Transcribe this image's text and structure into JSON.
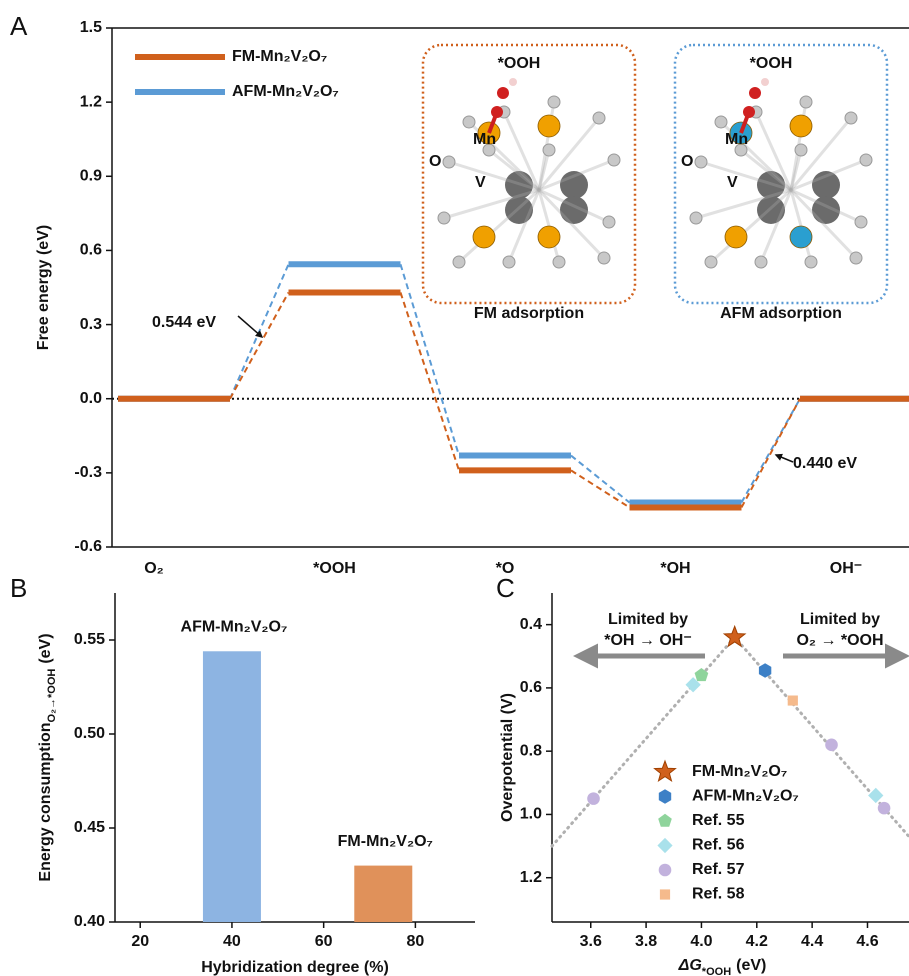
{
  "chart_data": [
    {
      "type": "energy_diagram",
      "panel": "A",
      "ylabel": "Free energy (eV)",
      "categories": [
        "O₂",
        "*OOH",
        "*O",
        "*OH",
        "OH⁻"
      ],
      "series": [
        {
          "name": "FM-Mn₂V₂O₇",
          "color": "#d0601c",
          "values": [
            0,
            0.43,
            -0.29,
            -0.44,
            0
          ]
        },
        {
          "name": "AFM-Mn₂V₂O₇",
          "color": "#5b9bd5",
          "values": [
            0,
            0.544,
            -0.23,
            -0.42,
            0
          ]
        }
      ],
      "ylim": [
        -0.6,
        1.5
      ],
      "yticks": [
        -0.6,
        -0.3,
        {
          "value": 0,
          "label": "0.0"
        },
        0.3,
        0.6,
        0.9,
        1.2,
        1.5
      ],
      "zero_line": true,
      "annotations": [
        "0.544 eV",
        "0.440 eV"
      ],
      "insets": [
        {
          "title": "*OOH",
          "atoms": [
            "Mn",
            "O",
            "V"
          ],
          "caption": "FM adsorption",
          "color": "#d0601c"
        },
        {
          "title": "*OOH",
          "atoms": [
            "Mn",
            "O",
            "V"
          ],
          "caption": "AFM adsorption",
          "color": "#5b9bd5"
        }
      ]
    },
    {
      "type": "bar",
      "panel": "B",
      "ylabel": {
        "main": "Energy consumption",
        "sub": "O₂→*OOH",
        "unit": "(eV)"
      },
      "xlabel": "Hybridization degree (%)",
      "x": [
        40,
        73
      ],
      "values": [
        0.544,
        0.43
      ],
      "labels": [
        "AFM-Mn₂V₂O₇",
        "FM-Mn₂V₂O₇"
      ],
      "colors": [
        "#8db4e2",
        "#e0915a"
      ],
      "xlim": [
        14.5,
        93
      ],
      "xticks": [
        20,
        40,
        60,
        80
      ],
      "ylim": [
        0.4,
        0.575
      ],
      "yticks": [
        {
          "value": 0.4,
          "label": "0.40"
        },
        0.45,
        {
          "value": 0.5,
          "label": "0.50"
        },
        0.55
      ]
    },
    {
      "type": "scatter",
      "panel": "C",
      "xlabel": {
        "main": "ΔG",
        "sub": "*OOH",
        "unit": "(eV)"
      },
      "ylabel": "Overpotential (V)",
      "xlim": [
        3.46,
        4.75
      ],
      "xticks": [
        3.6,
        3.8,
        {
          "value": 4,
          "label": "4.0"
        },
        4.2,
        4.4,
        4.6
      ],
      "ylim": [
        0.3,
        1.34
      ],
      "y_reversed": true,
      "yticks": [
        0.4,
        0.6,
        0.8,
        {
          "value": 1,
          "label": "1.0"
        },
        1.2
      ],
      "series": [
        {
          "name": "FM-Mn₂V₂O₇",
          "marker": "star",
          "color": "#d0601c",
          "x": [
            4.12
          ],
          "values": [
            0.44
          ]
        },
        {
          "name": "AFM-Mn₂V₂O₇",
          "marker": "hexagon",
          "color": "#3d80c6",
          "x": [
            4.23
          ],
          "values": [
            0.545
          ]
        },
        {
          "name": "Ref. 55",
          "marker": "pentagon",
          "color": "#8fd49c",
          "x": [
            4.0
          ],
          "values": [
            0.56
          ]
        },
        {
          "name": "Ref. 56",
          "marker": "diamond",
          "color": "#a9e1eb",
          "x": [
            3.97,
            4.63
          ],
          "values": [
            0.59,
            0.94
          ]
        },
        {
          "name": "Ref. 57",
          "marker": "circle",
          "color": "#c2b2dd",
          "x": [
            3.61,
            4.47,
            4.66
          ],
          "values": [
            0.95,
            0.78,
            0.98
          ]
        },
        {
          "name": "Ref. 58",
          "marker": "square",
          "color": "#f5ba8c",
          "x": [
            4.33
          ],
          "values": [
            0.64
          ]
        }
      ],
      "trend": {
        "x": [
          3.46,
          4.12,
          4.75
        ],
        "values": [
          1.1,
          0.44,
          1.07
        ],
        "color": "#b0b0b0"
      },
      "annotations": [
        [
          "Limited by",
          "*OH → OH⁻"
        ],
        [
          "Limited by",
          "O₂ → *OOH"
        ]
      ],
      "legend": "lower center"
    }
  ]
}
